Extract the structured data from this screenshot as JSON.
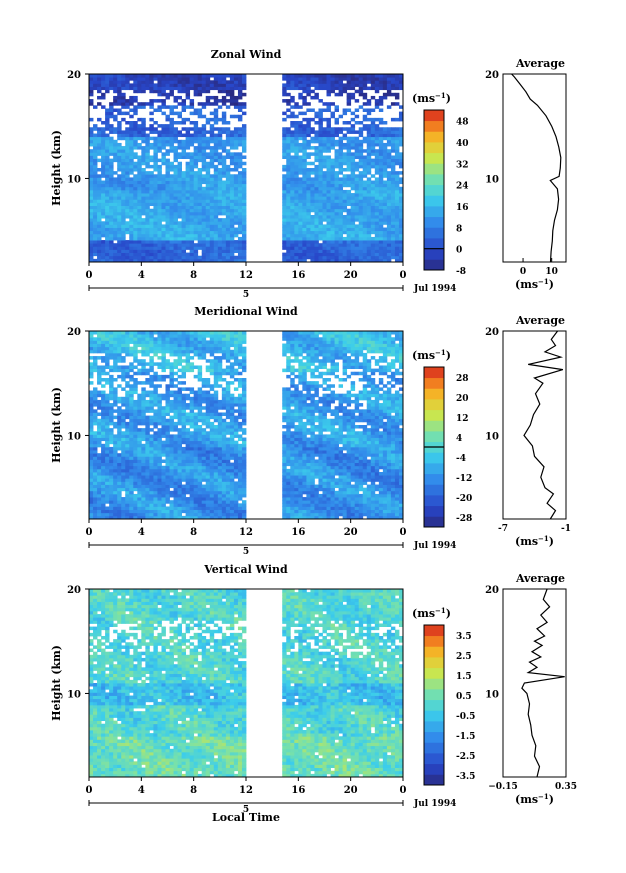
{
  "figure": {
    "x_axis_label": "Local Time",
    "date_label": "Jul 1994",
    "day_marker": "5",
    "y_axis_label": "Height (km)",
    "average_title": "Average",
    "unit_label": "(ms",
    "unit_exp": "−1",
    "unit_close": ")"
  },
  "chart_data": [
    {
      "type": "heatmap",
      "title": "Zonal Wind",
      "ylabel": "Height (km)",
      "xlabel": "Local Time",
      "x_ticks": [
        "0",
        "4",
        "8",
        "12",
        "16",
        "20",
        "0"
      ],
      "y_ticks": [
        "20",
        "10"
      ],
      "ylim": [
        2,
        20
      ],
      "data_gap_hours": [
        12.0,
        14.7
      ],
      "colorbar": {
        "ticks": [
          "48",
          "40",
          "32",
          "24",
          "16",
          "8",
          "0",
          "-8"
        ],
        "min": -8,
        "max": 52,
        "contour_level": 0
      },
      "average": {
        "xticks": [
          "0",
          "10"
        ],
        "xlim": [
          -7,
          15
        ],
        "profile": [
          [
            9.6,
            2
          ],
          [
            9.8,
            3
          ],
          [
            10.2,
            4
          ],
          [
            10.4,
            5
          ],
          [
            11,
            6
          ],
          [
            12,
            7
          ],
          [
            12.4,
            8
          ],
          [
            12,
            9
          ],
          [
            9.5,
            9.8
          ],
          [
            12.6,
            10.2
          ],
          [
            13,
            11
          ],
          [
            13.2,
            12
          ],
          [
            12.5,
            13
          ],
          [
            11.5,
            14
          ],
          [
            10,
            15
          ],
          [
            8,
            16
          ],
          [
            5,
            17
          ],
          [
            2.5,
            17.6
          ],
          [
            1,
            18.3
          ],
          [
            -1,
            19
          ],
          [
            -3,
            19.7
          ],
          [
            -4,
            20
          ]
        ]
      }
    },
    {
      "type": "heatmap",
      "title": "Meridional Wind",
      "ylabel": "Height (km)",
      "xlabel": "Local Time",
      "x_ticks": [
        "0",
        "4",
        "8",
        "12",
        "16",
        "20",
        "0"
      ],
      "y_ticks": [
        "20",
        "10"
      ],
      "ylim": [
        2,
        20
      ],
      "data_gap_hours": [
        12.0,
        14.7
      ],
      "colorbar": {
        "ticks": [
          "28",
          "20",
          "12",
          "4",
          "-4",
          "-12",
          "-20",
          "-28"
        ],
        "min": -32,
        "max": 32,
        "contour_level": 0
      },
      "average": {
        "xticks": [
          "-7",
          "-1"
        ],
        "xlim": [
          -7,
          -1
        ],
        "profile": [
          [
            -2.5,
            2
          ],
          [
            -2,
            2.8
          ],
          [
            -2.8,
            3.5
          ],
          [
            -2.2,
            4.4
          ],
          [
            -3,
            5
          ],
          [
            -3.4,
            6
          ],
          [
            -3.1,
            7
          ],
          [
            -4,
            8
          ],
          [
            -4.2,
            9
          ],
          [
            -5,
            10
          ],
          [
            -4.4,
            11
          ],
          [
            -4.1,
            12
          ],
          [
            -3.5,
            13
          ],
          [
            -3.9,
            14
          ],
          [
            -3.2,
            15
          ],
          [
            -4,
            15.5
          ],
          [
            -1.3,
            16.3
          ],
          [
            -4.6,
            16.8
          ],
          [
            -1.5,
            17.5
          ],
          [
            -3,
            18
          ],
          [
            -2,
            18.6
          ],
          [
            -2.4,
            19.2
          ],
          [
            -1.8,
            20
          ]
        ]
      }
    },
    {
      "type": "heatmap",
      "title": "Vertical Wind",
      "ylabel": "Height (km)",
      "xlabel": "Local Time",
      "x_ticks": [
        "0",
        "4",
        "8",
        "12",
        "16",
        "20",
        "0"
      ],
      "y_ticks": [
        "20",
        "10"
      ],
      "ylim": [
        2,
        20
      ],
      "data_gap_hours": [
        12.0,
        14.7
      ],
      "colorbar": {
        "ticks": [
          "3.5",
          "2.5",
          "1.5",
          "0.5",
          "-0.5",
          "-1.5",
          "-2.5",
          "-3.5"
        ],
        "min": -4,
        "max": 4,
        "contour_level": null
      },
      "average": {
        "xticks": [
          "−0.15",
          "0.35"
        ],
        "xlim": [
          -0.15,
          0.35
        ],
        "profile": [
          [
            0.12,
            2
          ],
          [
            0.14,
            3
          ],
          [
            0.1,
            4
          ],
          [
            0.11,
            5
          ],
          [
            0.08,
            6
          ],
          [
            0.07,
            7
          ],
          [
            0.05,
            8
          ],
          [
            0.06,
            9
          ],
          [
            0.04,
            10
          ],
          [
            0.0,
            10.5
          ],
          [
            0.02,
            11
          ],
          [
            0.34,
            11.6
          ],
          [
            0.05,
            12
          ],
          [
            0.12,
            12.5
          ],
          [
            0.06,
            13
          ],
          [
            0.15,
            13.5
          ],
          [
            0.08,
            14
          ],
          [
            0.16,
            14.6
          ],
          [
            0.1,
            15
          ],
          [
            0.18,
            15.5
          ],
          [
            0.12,
            16.2
          ],
          [
            0.2,
            16.8
          ],
          [
            0.15,
            17.5
          ],
          [
            0.22,
            18.3
          ],
          [
            0.17,
            19
          ],
          [
            0.2,
            20
          ]
        ]
      }
    }
  ]
}
